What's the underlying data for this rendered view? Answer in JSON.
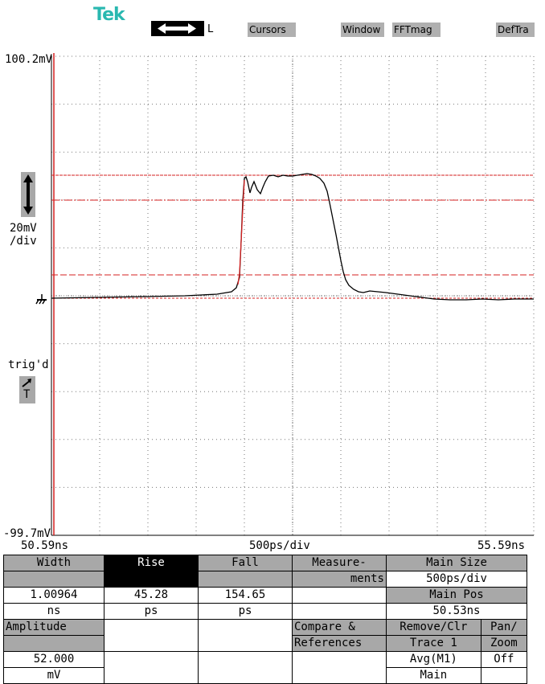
{
  "header": {
    "logo": "Tek",
    "arrow_mode": "L",
    "buttons": [
      "Cursors",
      "Window",
      "FFTmag",
      "DefTra"
    ]
  },
  "scale": {
    "top_value": "100.2mV",
    "bottom_value": "-99.7mV",
    "vdiv_line1": "20mV",
    "vdiv_line2": "/div",
    "trig_label": "trig'd",
    "trig_T": "T",
    "time_left": "50.59ns",
    "time_div": "500ps/div",
    "time_right": "55.59ns"
  },
  "colors": {
    "logo": "#29b8b0",
    "cursor": "#d42020",
    "trace": "#000000",
    "menu_gray": "#a8a8a8"
  },
  "menu": {
    "width_label": "Width",
    "rise_label": "Rise",
    "fall_label": "Fall",
    "measurements_1": "Measure-",
    "measurements_2": "ments",
    "main_size_label": "Main Size",
    "main_size_value": "500ps/div",
    "width_value": "1.00964",
    "width_unit": "ns",
    "rise_value": "45.28",
    "rise_unit": "ps",
    "fall_value": "154.65",
    "fall_unit": "ps",
    "main_pos_label": "Main Pos",
    "main_pos_value": "50.53ns",
    "amplitude_label": "Amplitude",
    "compare_1": "Compare &",
    "compare_2": "References",
    "remove_1": "Remove/Clr",
    "remove_2": "Trace 1",
    "panzoom_1": "Pan/",
    "panzoom_2": "Zoom",
    "amplitude_value": "52.000",
    "amplitude_unit": "mV",
    "avg_1": "Avg(M1)",
    "avg_2": "Main",
    "panzoom_value": "Off"
  }
}
